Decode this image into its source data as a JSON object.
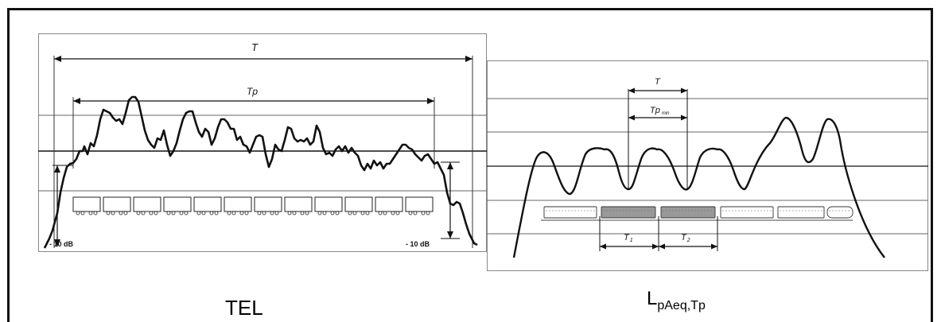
{
  "left_panel": {
    "caption": "TEL",
    "label_T": "T",
    "label_Tp": "Tp",
    "db_left": "- 10 dB",
    "db_right": "- 10 dB"
  },
  "right_panel": {
    "caption_main": "L",
    "caption_sub": "pAeq,Tp",
    "label_T": "T",
    "label_Tp": "Tp",
    "label_Tp_sub": "min",
    "label_T1": "T",
    "label_T1_sub": "1",
    "label_T2": "T",
    "label_T2_sub": "2"
  },
  "colors": {
    "stroke": "#111111",
    "grid": "#666666",
    "frame": "#111111"
  }
}
